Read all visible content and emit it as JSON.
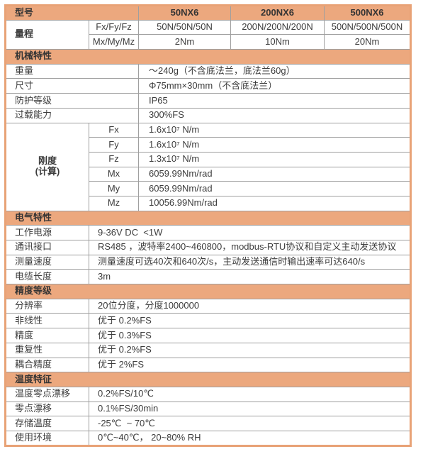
{
  "colors": {
    "header_bg": "#ECA87E",
    "outer_border": "#E8A276",
    "grid_line": "#9F9F9F",
    "text": "#3C3C3C"
  },
  "table": {
    "model_row": {
      "label": "型号",
      "models": [
        "50NX6",
        "200NX6",
        "500NX6"
      ]
    },
    "range": {
      "label": "量程",
      "force": {
        "sub": "Fx/Fy/Fz",
        "v0": "50N/50N/50N",
        "v1": "200N/200N/200N",
        "v2": "500N/500N/500N"
      },
      "torque": {
        "sub": "Mx/My/Mz",
        "v0": "2Nm",
        "v1": "10Nm",
        "v2": "20Nm"
      }
    },
    "mechanical": {
      "title": "机械特性",
      "rows": [
        {
          "label": "重量",
          "value": "～240g（不含底法兰，底法兰60g）"
        },
        {
          "label": "尺寸",
          "value": "Φ75mm×30mm（不含底法兰）"
        },
        {
          "label": "防护等级",
          "value": "IP65"
        },
        {
          "label": "过载能力",
          "value": "300%FS"
        }
      ],
      "stiffness": {
        "label_line1": "刚度",
        "label_line2": "(计算)",
        "rows": [
          {
            "axis": "Fx",
            "value": "1.6x10⁷ N/m"
          },
          {
            "axis": "Fy",
            "value": "1.6x10⁷ N/m"
          },
          {
            "axis": "Fz",
            "value": "1.3x10⁷ N/m"
          },
          {
            "axis": "Mx",
            "value": "6059.99Nm/rad"
          },
          {
            "axis": "My",
            "value": "6059.99Nm/rad"
          },
          {
            "axis": "Mz",
            "value": "10056.99Nm/rad"
          }
        ]
      }
    },
    "electrical": {
      "title": "电气特性",
      "rows": [
        {
          "label": "工作电源",
          "value": "9-36V DC  <1W"
        },
        {
          "label": "通讯接口",
          "value": "RS485 ，波特率2400~460800，modbus-RTU协议和自定义主动发送协议"
        },
        {
          "label": "测量速度",
          "value": "测量速度可选40次和640次/s，主动发送通信时输出速率可达640/s"
        },
        {
          "label": "电缆长度",
          "value": "3m"
        }
      ]
    },
    "accuracy": {
      "title": "精度等级",
      "rows": [
        {
          "label": "分辨率",
          "value": "20位分度，分度1000000"
        },
        {
          "label": "非线性",
          "value": "优于 0.2%FS"
        },
        {
          "label": "精度",
          "value": "优于 0.3%FS"
        },
        {
          "label": "重复性",
          "value": "优于 0.2%FS"
        },
        {
          "label": "耦合精度",
          "value": "优于 2%FS"
        }
      ]
    },
    "temperature": {
      "title": "温度特征",
      "rows": [
        {
          "label": "温度零点漂移",
          "value": "0.2%FS/10℃"
        },
        {
          "label": "零点漂移",
          "value": "0.1%FS/30min"
        },
        {
          "label": "存储温度",
          "value": "-25℃  ~ 70℃"
        },
        {
          "label": "使用环境",
          "value": "0℃~40℃， 20~80% RH"
        }
      ]
    }
  }
}
